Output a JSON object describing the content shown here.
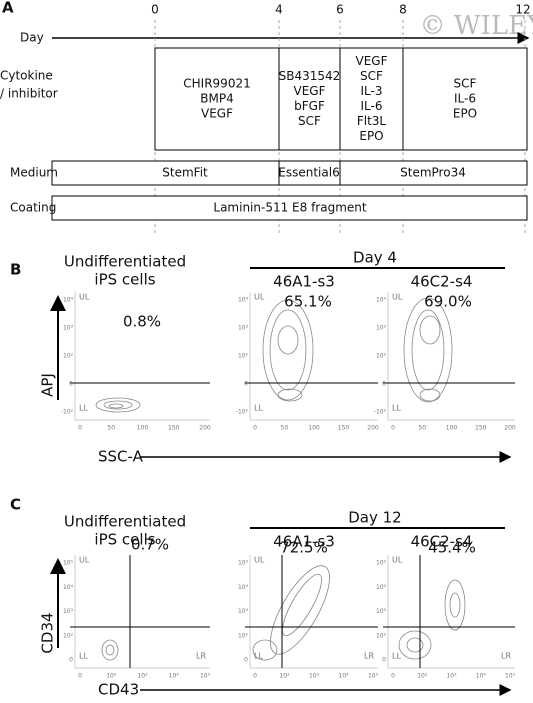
{
  "watermark": "© WILEY",
  "panel_a": {
    "label": "A",
    "day_label": "Day",
    "days": [
      "0",
      "4",
      "6",
      "8",
      "12"
    ],
    "cytokine": {
      "label_lines": [
        "Cytokine",
        "/ inhibitor"
      ],
      "cells": [
        [
          "CHIR99021",
          "BMP4",
          "VEGF"
        ],
        [
          "SB431542",
          "VEGF",
          "bFGF",
          "SCF"
        ],
        [
          "VEGF",
          "SCF",
          "IL-3",
          "IL-6",
          "Flt3L",
          "EPO"
        ],
        [
          "SCF",
          "IL-6",
          "EPO"
        ]
      ]
    },
    "medium": {
      "label": "Medium",
      "cells": [
        "StemFit",
        "Essential6",
        "StemPro34"
      ]
    },
    "coating": {
      "label": "Coating",
      "cells": [
        "Laminin-511 E8 fragment"
      ]
    }
  },
  "panel_b": {
    "label": "B",
    "group_label": "Day 4",
    "y_axis": "APJ",
    "x_axis": "SSC-A",
    "xticks": [
      "0",
      "50",
      "100",
      "150",
      "200"
    ],
    "yticks": [
      "10⁴",
      "10³",
      "10²",
      "0",
      "-10²"
    ],
    "plots": [
      {
        "title": [
          "Undifferentiated",
          "iPS cells"
        ],
        "percent": "0.8%",
        "quadrants": [
          "UL",
          "LL"
        ]
      },
      {
        "title": [
          "46A1-s3"
        ],
        "percent": "65.1%",
        "quadrants": [
          "UL",
          "LL"
        ]
      },
      {
        "title": [
          "46C2-s4"
        ],
        "percent": "69.0%",
        "quadrants": [
          "UL",
          "LL"
        ]
      }
    ]
  },
  "panel_c": {
    "label": "C",
    "group_label": "Day 12",
    "y_axis": "CD34",
    "x_axis": "CD43",
    "xticks": [
      "0",
      "10²",
      "10³",
      "10⁴",
      "10⁵"
    ],
    "yticks": [
      "10⁵",
      "10⁴",
      "10³",
      "10²",
      "0"
    ],
    "plots": [
      {
        "title": [
          "Undifferentiated",
          "iPS cells"
        ],
        "percent": "0.7%",
        "quadrants": [
          "UL",
          "LL",
          "LR"
        ]
      },
      {
        "title": [
          "46A1-s3"
        ],
        "percent": "72.5%",
        "quadrants": [
          "UL",
          "LL",
          "LR"
        ]
      },
      {
        "title": [
          "46C2-s4"
        ],
        "percent": "45.4%",
        "quadrants": [
          "UL",
          "LL",
          "LR"
        ]
      }
    ]
  }
}
